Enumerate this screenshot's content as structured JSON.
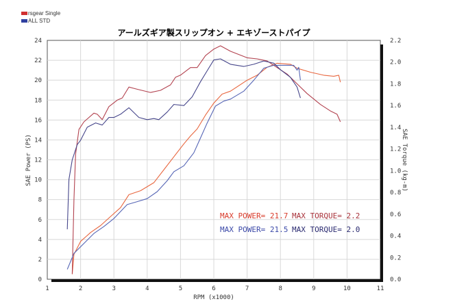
{
  "chart_data": {
    "type": "line",
    "title": "アールズギア製スリップオン + エキゾーストパイプ",
    "xlabel": "RPM (x1000)",
    "ylabel": "SAE Power (PS)",
    "y2label": "SAE Torque (kg-m)",
    "xlim": [
      1,
      11
    ],
    "ylim": [
      0,
      24
    ],
    "y2lim": [
      0,
      2.2
    ],
    "xticks": [
      "1",
      "2",
      "3",
      "4",
      "5",
      "6",
      "7",
      "8",
      "9",
      "10",
      "11"
    ],
    "yticks": [
      "0",
      "2",
      "4",
      "6",
      "8",
      "10",
      "12",
      "14",
      "16",
      "18",
      "20",
      "22",
      "24"
    ],
    "y2ticks": [
      "0.0",
      "0.2",
      "0.4",
      "0.6",
      "0.8",
      "1.0",
      "1.2",
      "1.4",
      "1.6",
      "1.8",
      "2.0",
      "2.2"
    ],
    "grid": true,
    "legend": [
      {
        "label": "rsgear Single",
        "color": "#d03030"
      },
      {
        "label": "ALL STD",
        "color": "#3040a0"
      }
    ],
    "series": [
      {
        "name": "rsgear Single Power",
        "axis": "left",
        "color": "#e8663e",
        "x": [
          1.75,
          1.8,
          2.0,
          2.3,
          2.6,
          2.9,
          3.2,
          3.45,
          3.8,
          4.2,
          4.5,
          4.8,
          5.1,
          5.3,
          5.5,
          5.75,
          6.0,
          6.25,
          6.5,
          7.0,
          7.3,
          7.6,
          7.9,
          8.3,
          8.5,
          8.9,
          9.3,
          9.6,
          9.75,
          9.8
        ],
        "y": [
          0.5,
          2.5,
          3.8,
          4.7,
          5.4,
          6.3,
          7.2,
          8.5,
          8.9,
          9.7,
          11,
          12.3,
          13.6,
          14.4,
          15.1,
          16.5,
          17.7,
          18.6,
          18.9,
          20,
          20.5,
          21.3,
          21.7,
          21.6,
          21.2,
          20.8,
          20.5,
          20.4,
          20.5,
          19.8
        ]
      },
      {
        "name": "rsgear Single Torque",
        "axis": "right",
        "color": "#b2414e",
        "x": [
          1.75,
          1.8,
          1.85,
          1.95,
          2.1,
          2.4,
          2.5,
          2.65,
          2.85,
          3.1,
          3.25,
          3.45,
          3.7,
          4.1,
          4.4,
          4.7,
          4.85,
          5.0,
          5.3,
          5.5,
          5.75,
          6.0,
          6.2,
          6.5,
          7.0,
          7.3,
          7.6,
          7.9,
          8.2,
          8.5,
          8.8,
          9.2,
          9.5,
          9.7,
          9.8
        ],
        "y": [
          0.05,
          0.73,
          1.15,
          1.38,
          1.45,
          1.53,
          1.52,
          1.47,
          1.59,
          1.65,
          1.67,
          1.77,
          1.75,
          1.72,
          1.74,
          1.79,
          1.86,
          1.88,
          1.95,
          1.95,
          2.06,
          2.12,
          2.15,
          2.1,
          2.04,
          2.03,
          2.01,
          1.95,
          1.89,
          1.8,
          1.71,
          1.61,
          1.55,
          1.52,
          1.45
        ]
      },
      {
        "name": "ALL STD Power",
        "axis": "left",
        "color": "#5565b5",
        "x": [
          1.6,
          1.8,
          2.1,
          2.4,
          2.7,
          3.0,
          3.4,
          3.7,
          4.0,
          4.3,
          4.6,
          4.8,
          5.1,
          5.4,
          5.6,
          5.8,
          6.05,
          6.3,
          6.5,
          6.9,
          7.2,
          7.5,
          7.8,
          8.1,
          8.4,
          8.5,
          8.55,
          8.6
        ],
        "y": [
          1,
          2.6,
          3.6,
          4.6,
          5.3,
          6.1,
          7.5,
          7.8,
          8.1,
          8.8,
          9.9,
          10.8,
          11.4,
          12.7,
          14.2,
          15.7,
          17.4,
          17.9,
          18.1,
          18.9,
          20,
          21.2,
          21.5,
          21.5,
          21.5,
          21,
          21.3,
          20
        ]
      },
      {
        "name": "ALL STD Torque",
        "axis": "right",
        "color": "#45458a",
        "x": [
          1.6,
          1.65,
          1.75,
          1.9,
          2.0,
          2.2,
          2.45,
          2.65,
          2.85,
          3.0,
          3.2,
          3.45,
          3.75,
          4.0,
          4.2,
          4.35,
          4.6,
          4.8,
          5.1,
          5.35,
          5.6,
          5.8,
          6.0,
          6.2,
          6.5,
          6.9,
          7.2,
          7.5,
          7.8,
          8.0,
          8.3,
          8.5,
          8.6
        ],
        "y": [
          0.46,
          0.92,
          1.1,
          1.24,
          1.28,
          1.4,
          1.44,
          1.42,
          1.49,
          1.49,
          1.52,
          1.58,
          1.49,
          1.47,
          1.48,
          1.47,
          1.54,
          1.61,
          1.6,
          1.68,
          1.82,
          1.92,
          2.02,
          2.03,
          1.98,
          1.96,
          1.98,
          2.01,
          1.99,
          1.93,
          1.86,
          1.77,
          1.67
        ]
      }
    ],
    "annotations": [
      {
        "text": "MAX POWER= 21.7",
        "color": "#d83a2a"
      },
      {
        "text": "MAX TORQUE= 2.2",
        "color": "#a8323a"
      },
      {
        "text": "MAX POWER= 21.5",
        "color": "#3a48a8"
      },
      {
        "text": "MAX TORQUE= 2.0",
        "color": "#2a2a70"
      }
    ]
  }
}
